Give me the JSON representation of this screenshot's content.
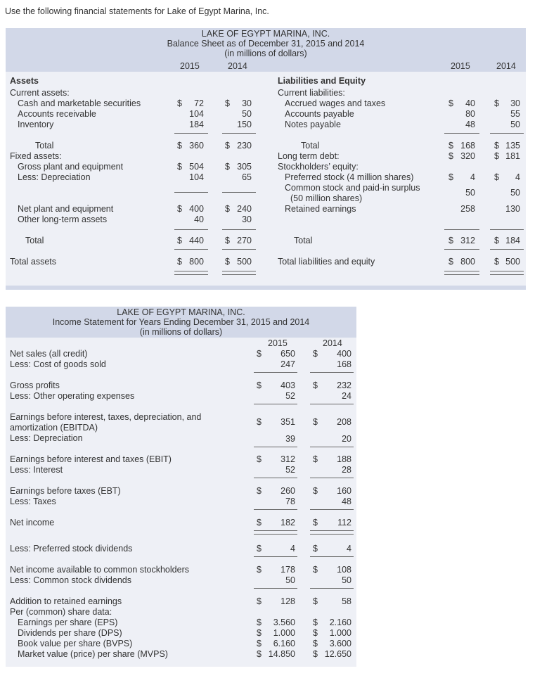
{
  "intro": "Use the following financial statements for Lake of Egypt Marina, Inc.",
  "bs": {
    "title1": "LAKE OF EGYPT MARINA, INC.",
    "title2": "Balance Sheet as of December 31, 2015 and 2014",
    "title3": "(in millions of dollars)",
    "y2015": "2015",
    "y2014": "2014",
    "assets_hdr": "Assets",
    "liab_hdr": "Liabilities and Equity",
    "current_assets": "Current assets:",
    "cash": "Cash and marketable securities",
    "ar": "Accounts receivable",
    "inv": "Inventory",
    "total": "Total",
    "fixed_assets": "Fixed assets:",
    "gross_plant": "Gross plant and equipment",
    "less_dep": "Less: Depreciation",
    "net_plant": "Net plant and equipment",
    "other_lta": "Other long-term assets",
    "total_assets": "Total assets",
    "current_liab": "Current liabilities:",
    "accrued": "Accrued wages and taxes",
    "ap": "Accounts payable",
    "np": "Notes payable",
    "ltd": "Long term debt:",
    "se": "Stockholders’ equity:",
    "pref": "Preferred stock (4 million shares)",
    "common1": "Common stock and paid-in surplus",
    "common2": "(50 million shares)",
    "re": "Retained earnings",
    "total_le": "Total liabilities and equity",
    "a15": {
      "cash": "72",
      "ar": "104",
      "inv": "184",
      "tca": "360",
      "gross": "504",
      "dep": "104",
      "net": "400",
      "other": "40",
      "tfa": "440",
      "ta": "800"
    },
    "a14": {
      "cash": "30",
      "ar": "50",
      "inv": "150",
      "tca": "230",
      "gross": "305",
      "dep": "65",
      "net": "240",
      "other": "30",
      "tfa": "270",
      "ta": "500"
    },
    "l15": {
      "accrued": "40",
      "ap": "80",
      "np": "48",
      "tcl": "168",
      "ltd": "320",
      "pref": "4",
      "common": "50",
      "re": "258",
      "tse": "312",
      "tle": "800"
    },
    "l14": {
      "accrued": "30",
      "ap": "55",
      "np": "50",
      "tcl": "135",
      "ltd": "181",
      "pref": "4",
      "common": "50",
      "re": "130",
      "tse": "184",
      "tle": "500"
    },
    "dollar": "$"
  },
  "is": {
    "title1": "LAKE OF EGYPT MARINA, INC.",
    "title2": "Income Statement for Years Ending December 31, 2015 and 2014",
    "title3": "(in millions of dollars)",
    "y2015": "2015",
    "y2014": "2014",
    "rows": {
      "sales": "Net sales (all credit)",
      "cogs": "Less: Cost of goods sold",
      "gp": "Gross profits",
      "opex": "Less: Other operating expenses",
      "ebitda1": "Earnings before interest, taxes, depreciation, and",
      "ebitda2": "amortization (EBITDA)",
      "dep": "Less: Depreciation",
      "ebit": "Earnings before interest and taxes (EBIT)",
      "int": "Less: Interest",
      "ebt": "Earnings before taxes (EBT)",
      "tax": "Less: Taxes",
      "ni": "Net income",
      "prefdiv": "Less: Preferred stock dividends",
      "nicommon": "Net income available to common stockholders",
      "commondiv": "Less: Common stock dividends",
      "addre": "Addition to retained earnings",
      "pershare": "Per (common) share data:",
      "eps": "Earnings per share (EPS)",
      "dps": "Dividends per share (DPS)",
      "bvps": "Book value per share (BVPS)",
      "mvps": "Market value (price) per share (MVPS)"
    },
    "v15": {
      "sales": "650",
      "cogs": "247",
      "gp": "403",
      "opex": "52",
      "ebitda": "351",
      "dep": "39",
      "ebit": "312",
      "int": "52",
      "ebt": "260",
      "tax": "78",
      "ni": "182",
      "prefdiv": "4",
      "nicommon": "178",
      "commondiv": "50",
      "addre": "128",
      "eps": "3.560",
      "dps": "1.000",
      "bvps": "6.160",
      "mvps": "14.850"
    },
    "v14": {
      "sales": "400",
      "cogs": "168",
      "gp": "232",
      "opex": "24",
      "ebitda": "208",
      "dep": "20",
      "ebit": "188",
      "int": "28",
      "ebt": "160",
      "tax": "48",
      "ni": "112",
      "prefdiv": "4",
      "nicommon": "108",
      "commondiv": "50",
      "addre": "58",
      "eps": "2.160",
      "dps": "1.000",
      "bvps": "3.600",
      "mvps": "12.650"
    },
    "dollar": "$"
  }
}
